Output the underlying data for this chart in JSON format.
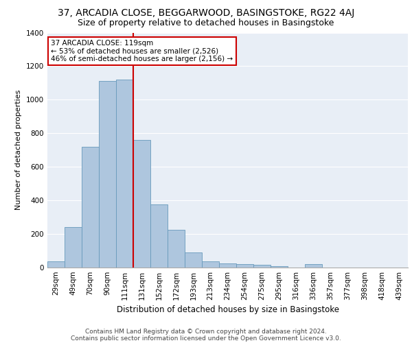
{
  "title1": "37, ARCADIA CLOSE, BEGGARWOOD, BASINGSTOKE, RG22 4AJ",
  "title2": "Size of property relative to detached houses in Basingstoke",
  "xlabel": "Distribution of detached houses by size in Basingstoke",
  "ylabel": "Number of detached properties",
  "categories": [
    "29sqm",
    "49sqm",
    "70sqm",
    "90sqm",
    "111sqm",
    "131sqm",
    "152sqm",
    "172sqm",
    "193sqm",
    "213sqm",
    "234sqm",
    "254sqm",
    "275sqm",
    "295sqm",
    "316sqm",
    "336sqm",
    "357sqm",
    "377sqm",
    "398sqm",
    "418sqm",
    "439sqm"
  ],
  "values": [
    35,
    240,
    720,
    1110,
    1120,
    760,
    375,
    225,
    90,
    35,
    25,
    20,
    15,
    10,
    0,
    20,
    0,
    0,
    0,
    0,
    0
  ],
  "bar_color": "#aec6de",
  "bar_edge_color": "#6699bb",
  "vline_x": 4.5,
  "vline_color": "#cc0000",
  "annotation_text": "37 ARCADIA CLOSE: 119sqm\n← 53% of detached houses are smaller (2,526)\n46% of semi-detached houses are larger (2,156) →",
  "annotation_box_color": "#ffffff",
  "annotation_box_edge": "#cc0000",
  "ylim": [
    0,
    1400
  ],
  "yticks": [
    0,
    200,
    400,
    600,
    800,
    1000,
    1200,
    1400
  ],
  "bg_color": "#e8eef6",
  "footer_line1": "Contains HM Land Registry data © Crown copyright and database right 2024.",
  "footer_line2": "Contains public sector information licensed under the Open Government Licence v3.0.",
  "title1_fontsize": 10,
  "title2_fontsize": 9,
  "xlabel_fontsize": 8.5,
  "ylabel_fontsize": 8,
  "tick_fontsize": 7.5,
  "footer_fontsize": 6.5,
  "annotation_fontsize": 7.5
}
